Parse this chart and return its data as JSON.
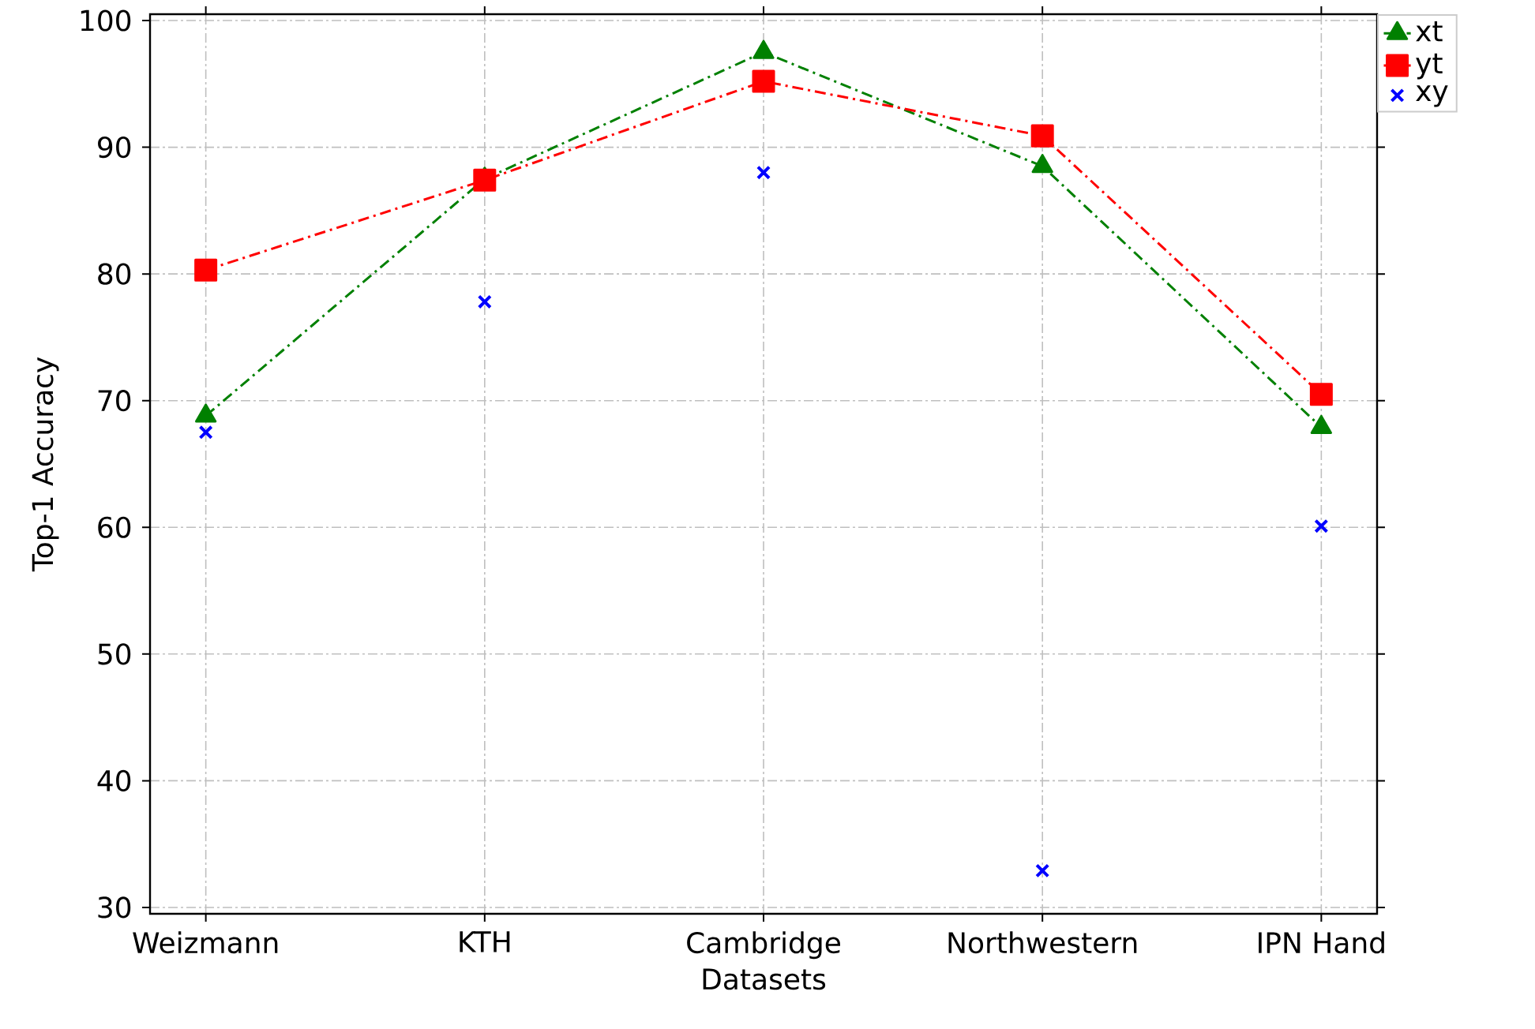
{
  "chart_data": {
    "type": "line",
    "xlabel": "Datasets",
    "ylabel": "Top-1 Accuracy",
    "categories": [
      "Weizmann",
      "KTH",
      "Cambridge",
      "Northwestern",
      "IPN Hand"
    ],
    "series": [
      {
        "name": "xt",
        "color": "#008000",
        "marker": "triangle",
        "line_style": "dashdot",
        "values": [
          68.8,
          87.5,
          97.5,
          88.5,
          67.9
        ]
      },
      {
        "name": "yt",
        "color": "#ff0000",
        "marker": "square",
        "line_style": "dashdot",
        "values": [
          80.3,
          87.4,
          95.2,
          90.9,
          70.5
        ]
      },
      {
        "name": "xy",
        "type": "scatter",
        "color": "#0000ff",
        "marker": "cross",
        "values": [
          67.5,
          77.8,
          88.0,
          32.9,
          60.1
        ]
      }
    ],
    "ylim": [
      29.5,
      100.5
    ],
    "yticks": [
      30,
      40,
      50,
      60,
      70,
      80,
      90,
      100
    ],
    "grid": true,
    "legend": "top right"
  }
}
